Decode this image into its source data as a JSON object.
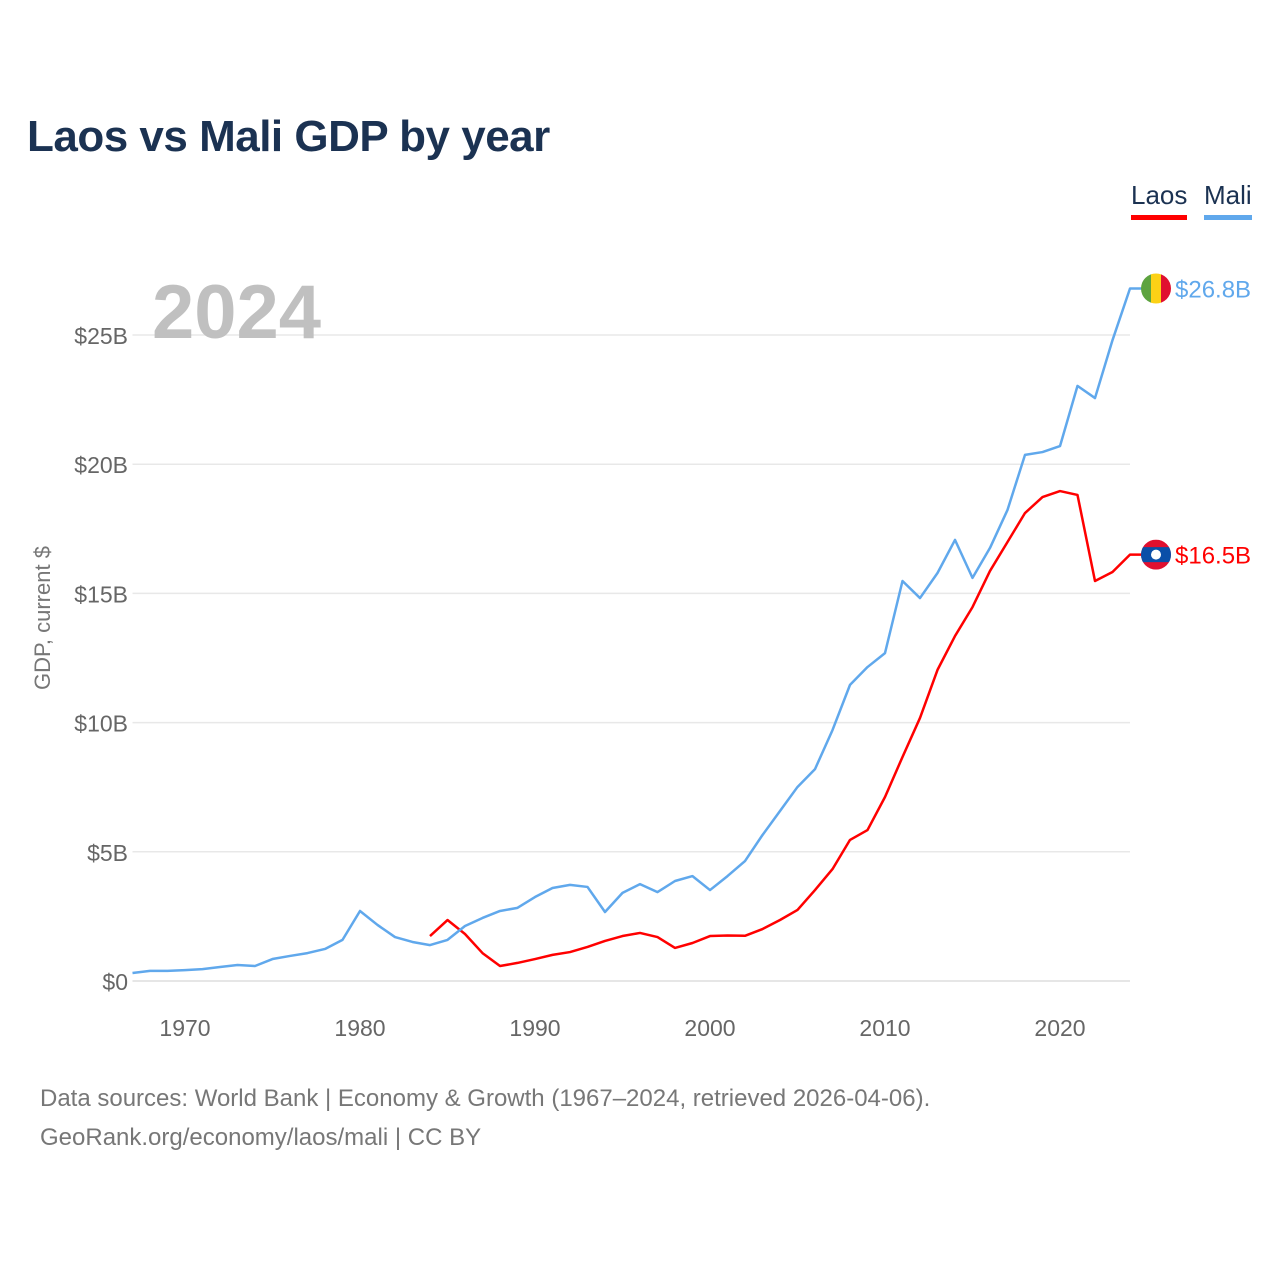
{
  "chart_data": {
    "type": "line",
    "title": "Laos vs Mali GDP by year",
    "ylabel": "GDP, current $",
    "xlabel": "",
    "year_label": "2024",
    "xlim": [
      1967,
      2024
    ],
    "ylim": [
      0,
      27
    ],
    "x_ticks": [
      1970,
      1980,
      1990,
      2000,
      2010,
      2020
    ],
    "x_tick_labels": [
      "1970",
      "1980",
      "1990",
      "2000",
      "2010",
      "2020"
    ],
    "y_ticks": [
      0,
      5,
      10,
      15,
      20,
      25
    ],
    "y_tick_labels": [
      "$0",
      "$5B",
      "$10B",
      "$15B",
      "$20B",
      "$25B"
    ],
    "grid": true,
    "legend_position": "top-right",
    "series": [
      {
        "name": "Laos",
        "color": "#ff0000",
        "end_label": "$16.5B",
        "start_year": 1984,
        "values": [
          1.74,
          2.36,
          1.82,
          1.08,
          0.58,
          0.7,
          0.85,
          1.01,
          1.12,
          1.32,
          1.55,
          1.74,
          1.86,
          1.7,
          1.28,
          1.47,
          1.74,
          1.76,
          1.75,
          2.01,
          2.36,
          2.75,
          3.52,
          4.33,
          5.46,
          5.84,
          7.12,
          8.67,
          10.18,
          12.04,
          13.35,
          14.47,
          15.87,
          16.99,
          18.11,
          18.73,
          18.96,
          18.81,
          15.48,
          15.83,
          16.5
        ]
      },
      {
        "name": "Mali",
        "color": "#60a8ec",
        "end_label": "$26.8B",
        "start_year": 1967,
        "values": [
          0.31,
          0.39,
          0.39,
          0.42,
          0.46,
          0.54,
          0.62,
          0.58,
          0.85,
          0.97,
          1.08,
          1.24,
          1.59,
          2.71,
          2.17,
          1.7,
          1.51,
          1.39,
          1.59,
          2.13,
          2.44,
          2.71,
          2.83,
          3.25,
          3.6,
          3.72,
          3.64,
          2.67,
          3.41,
          3.75,
          3.44,
          3.87,
          4.06,
          3.52,
          4.06,
          4.64,
          5.65,
          6.58,
          7.51,
          8.2,
          9.71,
          11.46,
          12.15,
          12.69,
          15.48,
          14.82,
          15.79,
          17.07,
          15.6,
          16.76,
          18.23,
          20.36,
          20.47,
          20.7,
          23.03,
          22.56,
          24.8,
          26.8
        ]
      }
    ]
  },
  "footer": {
    "line1": "Data sources: World Bank | Economy & Growth (1967–2024, retrieved 2026-04-06).",
    "line2": "GeoRank.org/economy/laos/mali | CC BY"
  }
}
